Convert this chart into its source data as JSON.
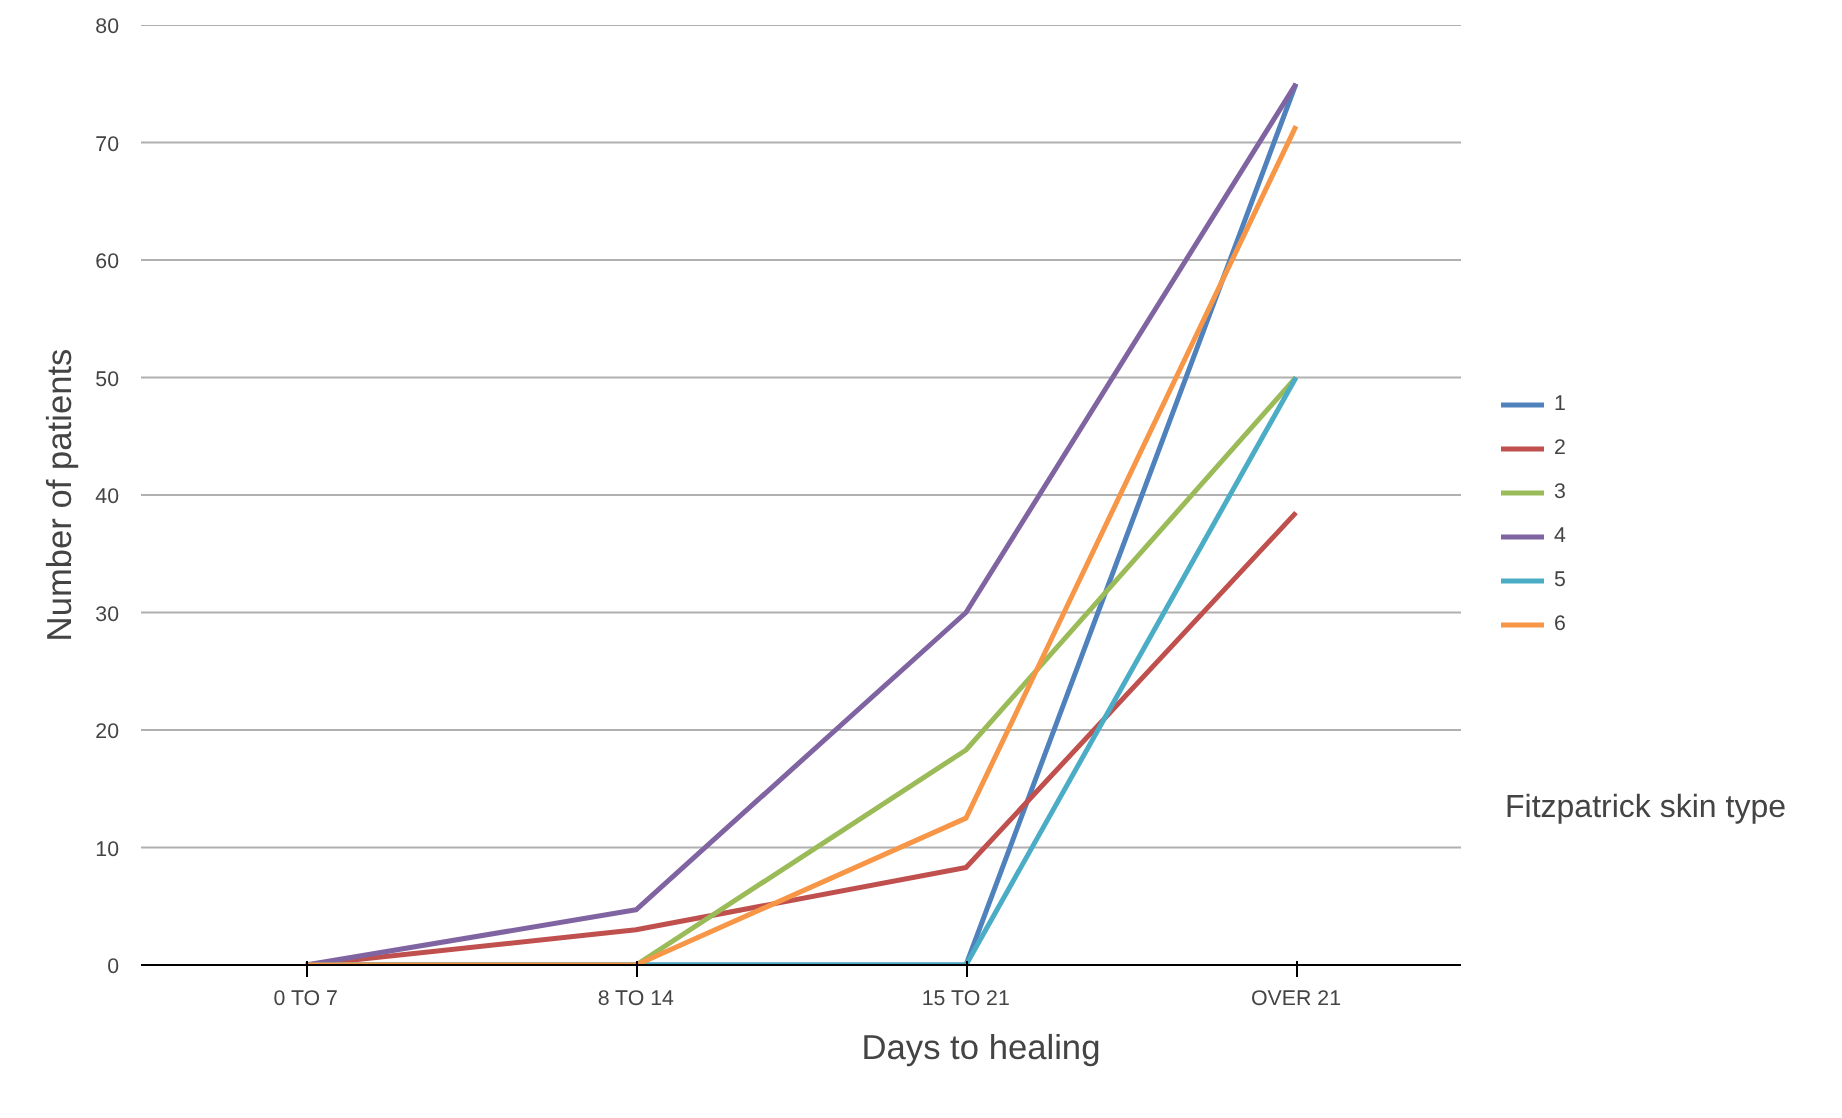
{
  "chart_data": {
    "type": "line",
    "xlabel": "Days to healing",
    "ylabel": "Number of patients",
    "legend_title": "Fitzpatrick skin type",
    "categories": [
      "0 TO 7",
      "8 TO 14",
      "15 TO 21",
      "OVER 21"
    ],
    "ylim": [
      0,
      80
    ],
    "yticks": [
      0,
      10,
      20,
      30,
      40,
      50,
      60,
      70,
      80
    ],
    "grid": "y",
    "legend": "right",
    "marker": "none",
    "line_style": "solid",
    "series": [
      {
        "name": "1",
        "color": "#4f81bd",
        "values": [
          0,
          0,
          0,
          75
        ]
      },
      {
        "name": "2",
        "color": "#c0504d",
        "values": [
          0,
          3,
          8.3,
          38.5
        ]
      },
      {
        "name": "3",
        "color": "#9bbb59",
        "values": [
          0,
          0,
          18.3,
          50
        ]
      },
      {
        "name": "4",
        "color": "#8064a2",
        "values": [
          0,
          4.7,
          30,
          75
        ]
      },
      {
        "name": "5",
        "color": "#4bacc6",
        "values": [
          0,
          0,
          0,
          50
        ]
      },
      {
        "name": "6",
        "color": "#f79646",
        "values": [
          0,
          0,
          12.5,
          71.4
        ]
      }
    ]
  }
}
